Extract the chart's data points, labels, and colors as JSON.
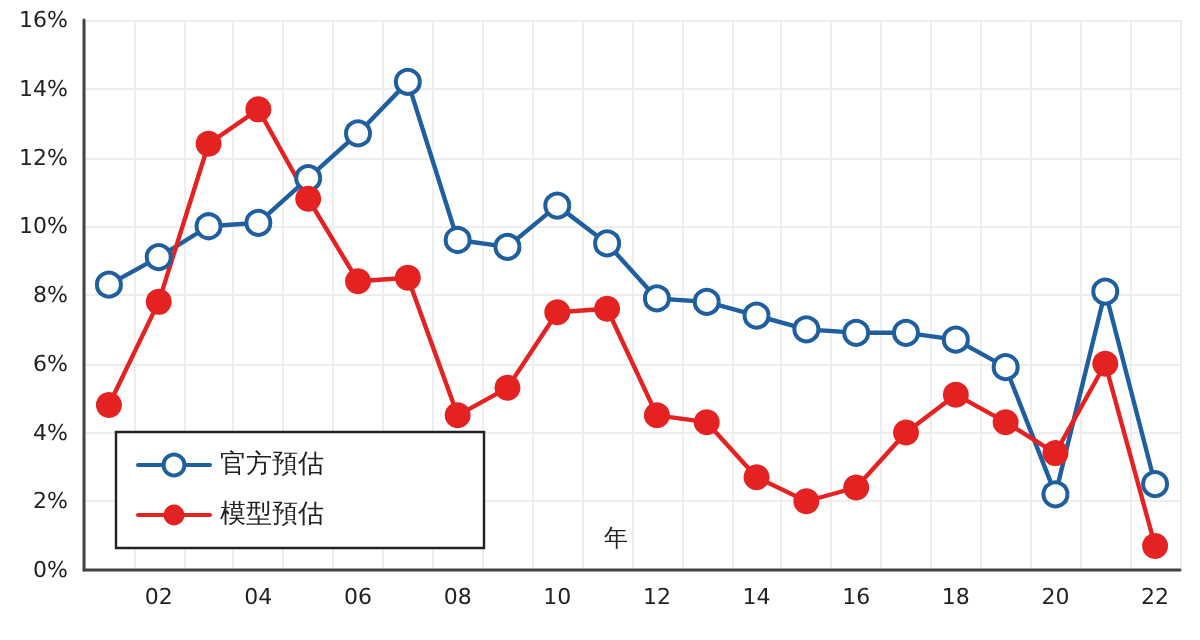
{
  "chart_data": {
    "type": "line",
    "xlabel": "年",
    "categories": [
      null,
      "02",
      null,
      "04",
      null,
      "06",
      null,
      "08",
      null,
      "10",
      null,
      "12",
      null,
      "14",
      null,
      "16",
      null,
      "18",
      null,
      "20",
      null,
      "22"
    ],
    "series": [
      {
        "name": "官方預估",
        "color": "#1f5fa0",
        "marker": "emptyCircle",
        "values": [
          8.3,
          9.1,
          10.0,
          10.1,
          11.4,
          12.7,
          14.2,
          9.6,
          9.4,
          10.6,
          9.5,
          7.9,
          7.8,
          7.4,
          7.0,
          6.9,
          6.9,
          6.7,
          5.9,
          2.2,
          8.1,
          2.5
        ]
      },
      {
        "name": "模型預估",
        "color": "#e52222",
        "marker": "circle",
        "values": [
          4.8,
          7.8,
          12.4,
          13.4,
          10.8,
          8.4,
          8.5,
          4.5,
          5.3,
          7.5,
          7.6,
          4.5,
          4.3,
          2.7,
          2.0,
          2.4,
          4.0,
          5.1,
          4.3,
          3.4,
          6.0,
          0.7
        ]
      }
    ],
    "ylim": [
      0,
      16
    ],
    "yticks": [
      {
        "value": 0,
        "label": "0%"
      },
      {
        "value": 2,
        "label": "2%"
      },
      {
        "value": 4,
        "label": "4%"
      },
      {
        "value": 6,
        "label": "6%"
      },
      {
        "value": 8,
        "label": "8%"
      },
      {
        "value": 10,
        "label": "10%"
      },
      {
        "value": 12,
        "label": "12%"
      },
      {
        "value": 14,
        "label": "14%"
      },
      {
        "value": 16,
        "label": "16%"
      }
    ],
    "grid": true,
    "legend": "bottom left",
    "line_style": "solid"
  }
}
